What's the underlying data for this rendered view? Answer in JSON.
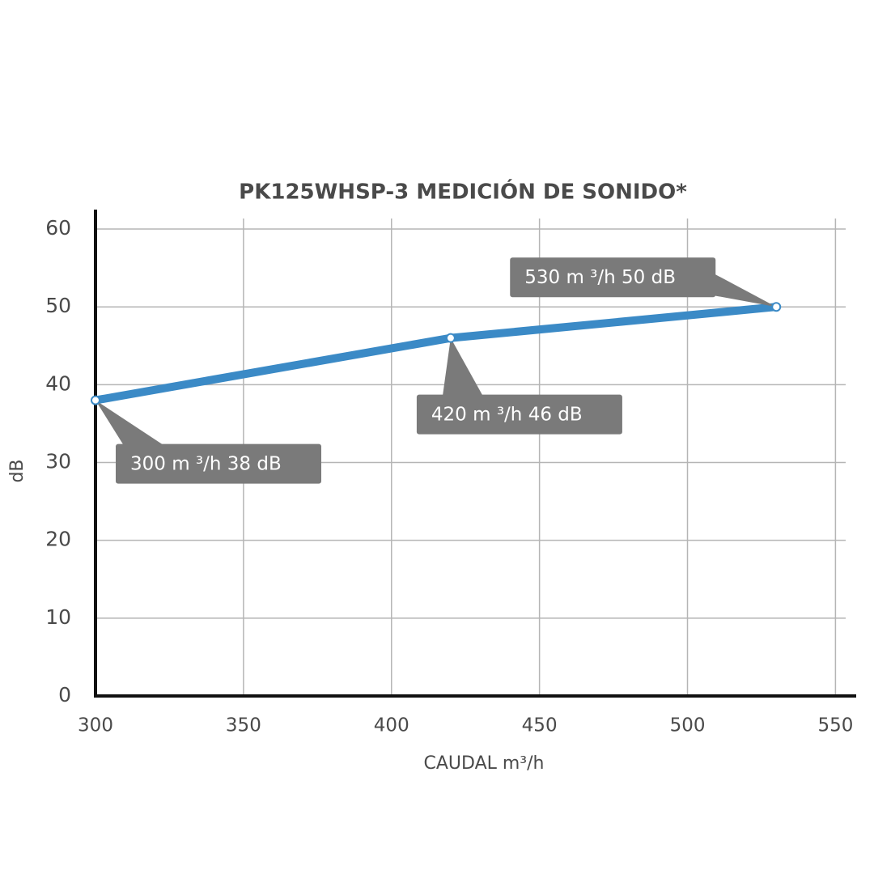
{
  "chart_data": {
    "type": "line",
    "title": "PK125WHSP-3 MEDICIÓN DE SONIDO*",
    "x_label": "CAUDAL   m³/h",
    "y_label": "dB",
    "x": [
      300,
      420,
      530
    ],
    "series": [
      {
        "name": "dB",
        "color": "#3b8ac6",
        "values": [
          38,
          46,
          50
        ]
      }
    ],
    "annotations": [
      "300 m ³/h  38 dB",
      "420 m ³/h  46 dB",
      "530 m ³/h  50 dB"
    ],
    "xlim": [
      300,
      557
    ],
    "ylim": [
      0,
      62.5
    ],
    "xticks": [
      300,
      350,
      400,
      450,
      500,
      550
    ],
    "yticks": [
      0,
      10,
      20,
      30,
      40,
      50,
      60
    ],
    "grid": true
  }
}
